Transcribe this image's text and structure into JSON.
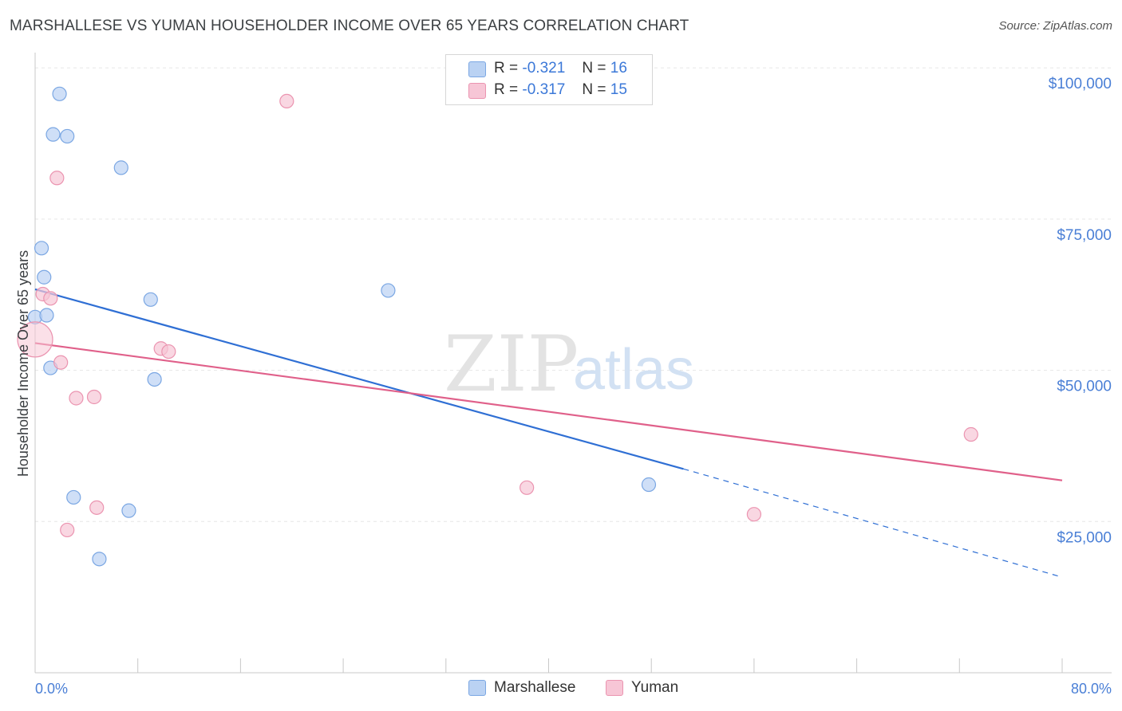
{
  "header": {
    "title": "MARSHALLESE VS YUMAN HOUSEHOLDER INCOME OVER 65 YEARS CORRELATION CHART",
    "source": "Source: ZipAtlas.com"
  },
  "stats": {
    "r_label": "R =",
    "n_label": "N =",
    "series": [
      {
        "r": "-0.321",
        "n": "16"
      },
      {
        "r": "-0.317",
        "n": "15"
      }
    ]
  },
  "watermark": {
    "zip": "ZIP",
    "atlas": "atlas"
  },
  "chart_data": {
    "type": "scatter",
    "title": "MARSHALLESE VS YUMAN HOUSEHOLDER INCOME OVER 65 YEARS CORRELATION CHART",
    "xlabel": "",
    "ylabel": "Householder Income Over 65 years",
    "xlim": [
      0,
      80
    ],
    "ylim": [
      0,
      102000
    ],
    "x_tick_labels": [
      "0.0%",
      "80.0%"
    ],
    "y_ticks": [
      25000,
      50000,
      75000,
      100000
    ],
    "y_tick_labels": [
      "$25,000",
      "$50,000",
      "$75,000",
      "$100,000"
    ],
    "legend_position": "bottom",
    "series": [
      {
        "name": "Marshallese",
        "color": "#7ba7e3",
        "fill": "#bad2f3",
        "line_color": "#2f6fd4",
        "points": [
          {
            "x": 1.9,
            "y": 95700
          },
          {
            "x": 1.4,
            "y": 89000
          },
          {
            "x": 2.5,
            "y": 88700
          },
          {
            "x": 6.7,
            "y": 83500
          },
          {
            "x": 0.5,
            "y": 70200
          },
          {
            "x": 0.7,
            "y": 65400
          },
          {
            "x": 9.0,
            "y": 61700
          },
          {
            "x": 27.5,
            "y": 63200
          },
          {
            "x": 0.0,
            "y": 58800
          },
          {
            "x": 0.9,
            "y": 59100
          },
          {
            "x": 1.2,
            "y": 50400
          },
          {
            "x": 9.3,
            "y": 48500
          },
          {
            "x": 3.0,
            "y": 29000
          },
          {
            "x": 7.3,
            "y": 26800
          },
          {
            "x": 5.0,
            "y": 18800
          },
          {
            "x": 47.8,
            "y": 31100
          }
        ],
        "trend": {
          "x": [
            0,
            50.5
          ],
          "y": [
            63400,
            33700
          ],
          "dashed_to": [
            80,
            15800
          ]
        }
      },
      {
        "name": "Yuman",
        "color": "#eb94b0",
        "fill": "#f7c6d6",
        "line_color": "#e0608a",
        "points": [
          {
            "x": 19.6,
            "y": 94500
          },
          {
            "x": 1.7,
            "y": 81800
          },
          {
            "x": 0.6,
            "y": 62600
          },
          {
            "x": 1.2,
            "y": 61900
          },
          {
            "x": 0.0,
            "y": 55100,
            "large": true
          },
          {
            "x": 9.8,
            "y": 53600
          },
          {
            "x": 10.4,
            "y": 53100
          },
          {
            "x": 2.0,
            "y": 51300
          },
          {
            "x": 3.2,
            "y": 45400
          },
          {
            "x": 4.6,
            "y": 45600
          },
          {
            "x": 4.8,
            "y": 27300
          },
          {
            "x": 2.5,
            "y": 23600
          },
          {
            "x": 38.3,
            "y": 30600
          },
          {
            "x": 56.0,
            "y": 26200
          },
          {
            "x": 72.9,
            "y": 39400
          }
        ],
        "trend": {
          "x": [
            0,
            80
          ],
          "y": [
            54500,
            31800
          ]
        }
      }
    ]
  }
}
